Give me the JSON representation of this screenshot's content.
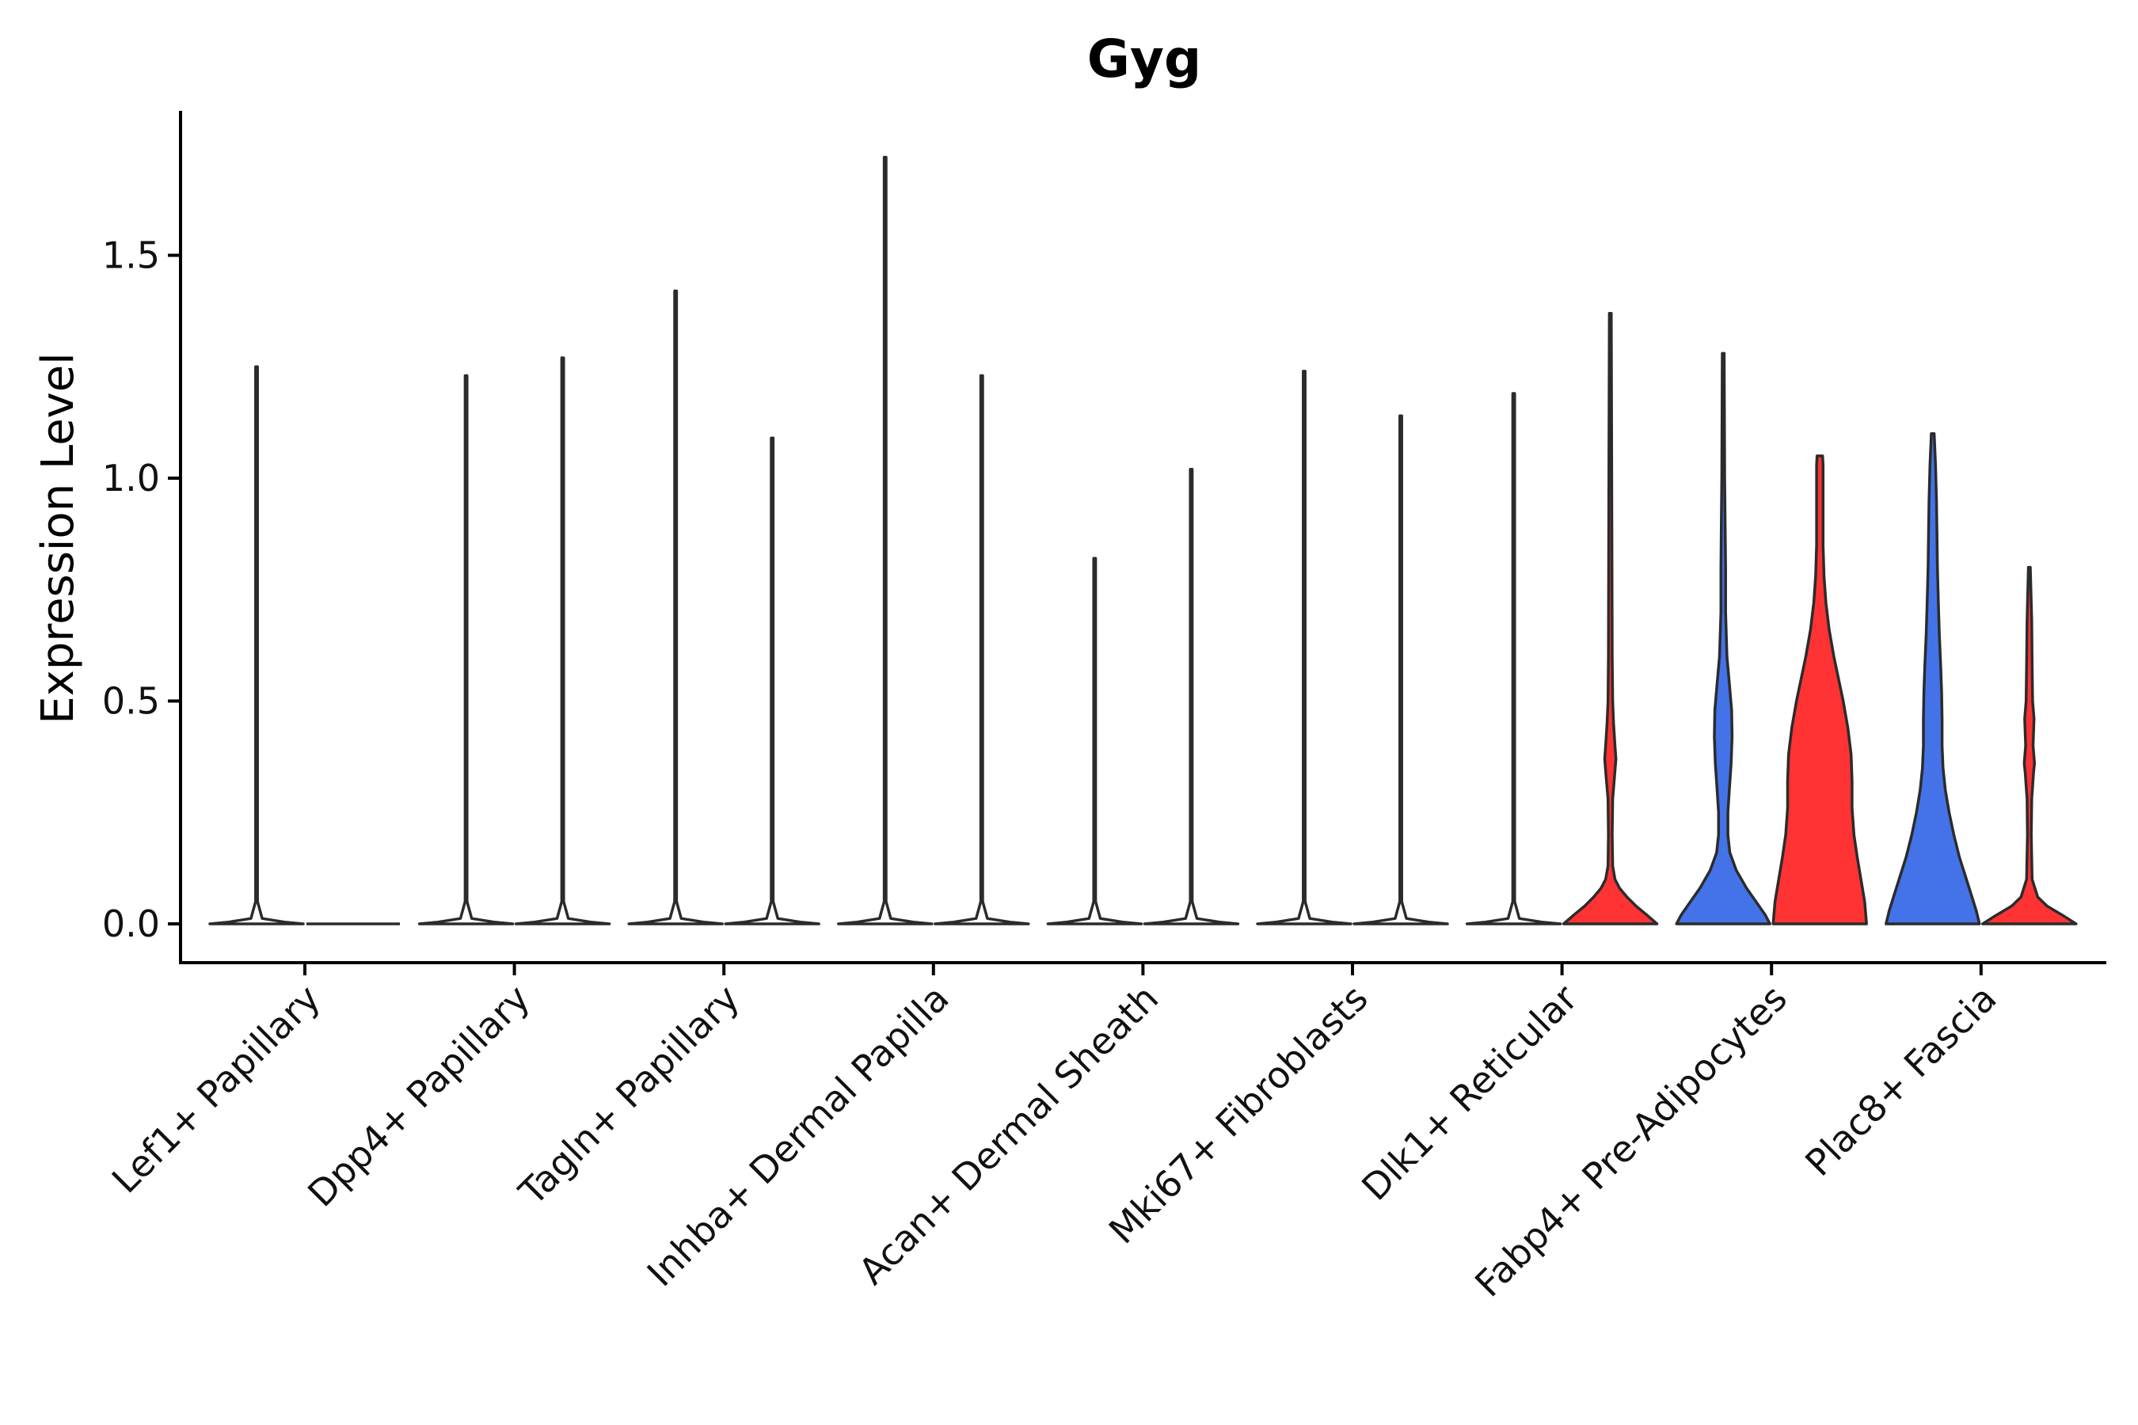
{
  "chart_data": {
    "type": "violin",
    "title": "Gyg",
    "xlabel": "",
    "ylabel": "Expression Level",
    "ylim": [
      -0.09,
      1.82
    ],
    "yticks": [
      0.0,
      0.5,
      1.0,
      1.5
    ],
    "ytick_labels": [
      "0.0",
      "0.5",
      "1.0",
      "1.5"
    ],
    "categories": [
      "Lef1+ Papillary",
      "Dpp4+ Papillary",
      "Tagln+ Papillary",
      "Inhba+ Dermal Papilla",
      "Acan+ Dermal Sheath",
      "Mki67+ Fibroblasts",
      "Dlk1+ Reticular",
      "Fabp4+ Pre-Adipocytes",
      "Plac8+ Fascia"
    ],
    "colors": {
      "group1": "#ffffff",
      "group2": "#ffffff",
      "blue": "#4472e8",
      "red": "#ff3333",
      "outline": "#2b2b2b"
    },
    "violins": [
      {
        "category": 0,
        "side": "left",
        "max": 1.25,
        "color": "#ffffff",
        "profile": [
          [
            0,
            1.0
          ],
          [
            0.004,
            0.6
          ],
          [
            0.012,
            0.12
          ],
          [
            0.05,
            0.02
          ],
          [
            1.25,
            0.02
          ]
        ]
      },
      {
        "category": 0,
        "side": "right",
        "max": 0.0,
        "color": "#ffffff",
        "profile": [
          [
            0,
            0
          ]
        ]
      },
      {
        "category": 1,
        "side": "left",
        "max": 1.23,
        "color": "#ffffff",
        "profile": [
          [
            0,
            1.0
          ],
          [
            0.004,
            0.6
          ],
          [
            0.012,
            0.12
          ],
          [
            0.05,
            0.02
          ],
          [
            1.23,
            0.02
          ]
        ]
      },
      {
        "category": 1,
        "side": "right",
        "max": 1.27,
        "color": "#ffffff",
        "profile": [
          [
            0,
            1.0
          ],
          [
            0.004,
            0.6
          ],
          [
            0.012,
            0.12
          ],
          [
            0.05,
            0.02
          ],
          [
            1.27,
            0.02
          ]
        ]
      },
      {
        "category": 2,
        "side": "left",
        "max": 1.42,
        "color": "#ffffff",
        "profile": [
          [
            0,
            1.0
          ],
          [
            0.004,
            0.6
          ],
          [
            0.012,
            0.12
          ],
          [
            0.05,
            0.02
          ],
          [
            1.42,
            0.02
          ]
        ]
      },
      {
        "category": 2,
        "side": "right",
        "max": 1.09,
        "color": "#ffffff",
        "profile": [
          [
            0,
            1.0
          ],
          [
            0.004,
            0.6
          ],
          [
            0.012,
            0.12
          ],
          [
            0.05,
            0.02
          ],
          [
            1.09,
            0.02
          ]
        ]
      },
      {
        "category": 3,
        "side": "left",
        "max": 1.72,
        "color": "#ffffff",
        "profile": [
          [
            0,
            1.0
          ],
          [
            0.004,
            0.6
          ],
          [
            0.012,
            0.12
          ],
          [
            0.05,
            0.02
          ],
          [
            1.72,
            0.02
          ]
        ]
      },
      {
        "category": 3,
        "side": "right",
        "max": 1.23,
        "color": "#ffffff",
        "profile": [
          [
            0,
            1.0
          ],
          [
            0.004,
            0.6
          ],
          [
            0.012,
            0.12
          ],
          [
            0.05,
            0.02
          ],
          [
            1.23,
            0.02
          ]
        ]
      },
      {
        "category": 4,
        "side": "left",
        "max": 0.82,
        "color": "#ffffff",
        "profile": [
          [
            0,
            1.0
          ],
          [
            0.004,
            0.6
          ],
          [
            0.012,
            0.12
          ],
          [
            0.05,
            0.02
          ],
          [
            0.82,
            0.02
          ]
        ]
      },
      {
        "category": 4,
        "side": "right",
        "max": 1.02,
        "color": "#ffffff",
        "profile": [
          [
            0,
            1.0
          ],
          [
            0.004,
            0.6
          ],
          [
            0.012,
            0.12
          ],
          [
            0.05,
            0.02
          ],
          [
            1.02,
            0.02
          ]
        ]
      },
      {
        "category": 5,
        "side": "left",
        "max": 1.24,
        "color": "#ffffff",
        "profile": [
          [
            0,
            1.0
          ],
          [
            0.004,
            0.6
          ],
          [
            0.012,
            0.12
          ],
          [
            0.05,
            0.02
          ],
          [
            1.24,
            0.02
          ]
        ]
      },
      {
        "category": 5,
        "side": "right",
        "max": 1.14,
        "color": "#ffffff",
        "profile": [
          [
            0,
            1.0
          ],
          [
            0.004,
            0.6
          ],
          [
            0.012,
            0.12
          ],
          [
            0.05,
            0.02
          ],
          [
            1.14,
            0.02
          ]
        ]
      },
      {
        "category": 6,
        "side": "left",
        "max": 1.19,
        "color": "#ffffff",
        "profile": [
          [
            0,
            1.0
          ],
          [
            0.004,
            0.6
          ],
          [
            0.012,
            0.12
          ],
          [
            0.05,
            0.02
          ],
          [
            1.19,
            0.02
          ]
        ]
      },
      {
        "category": 6,
        "side": "right",
        "max": 1.37,
        "color": "#ff3333",
        "profile": [
          [
            0,
            1.0
          ],
          [
            0.02,
            0.78
          ],
          [
            0.04,
            0.55
          ],
          [
            0.06,
            0.36
          ],
          [
            0.08,
            0.2
          ],
          [
            0.1,
            0.1
          ],
          [
            0.13,
            0.05
          ],
          [
            0.2,
            0.04
          ],
          [
            0.28,
            0.05
          ],
          [
            0.33,
            0.09
          ],
          [
            0.37,
            0.12
          ],
          [
            0.4,
            0.1
          ],
          [
            0.45,
            0.07
          ],
          [
            0.5,
            0.05
          ],
          [
            0.6,
            0.04
          ],
          [
            0.8,
            0.035
          ],
          [
            1.0,
            0.03
          ],
          [
            1.37,
            0.02
          ]
        ]
      },
      {
        "category": 7,
        "side": "left",
        "max": 1.28,
        "color": "#4472e8",
        "profile": [
          [
            0,
            1.0
          ],
          [
            0.02,
            0.9
          ],
          [
            0.05,
            0.7
          ],
          [
            0.08,
            0.5
          ],
          [
            0.12,
            0.28
          ],
          [
            0.16,
            0.14
          ],
          [
            0.2,
            0.1
          ],
          [
            0.25,
            0.1
          ],
          [
            0.3,
            0.13
          ],
          [
            0.36,
            0.17
          ],
          [
            0.42,
            0.19
          ],
          [
            0.48,
            0.18
          ],
          [
            0.54,
            0.13
          ],
          [
            0.6,
            0.08
          ],
          [
            0.7,
            0.05
          ],
          [
            0.8,
            0.05
          ],
          [
            0.9,
            0.04
          ],
          [
            1.0,
            0.03
          ],
          [
            1.28,
            0.02
          ]
        ]
      },
      {
        "category": 7,
        "side": "right",
        "max": 1.05,
        "color": "#ff3333",
        "profile": [
          [
            0,
            1.0
          ],
          [
            0.05,
            0.96
          ],
          [
            0.1,
            0.88
          ],
          [
            0.15,
            0.8
          ],
          [
            0.2,
            0.73
          ],
          [
            0.26,
            0.69
          ],
          [
            0.32,
            0.69
          ],
          [
            0.38,
            0.67
          ],
          [
            0.44,
            0.6
          ],
          [
            0.5,
            0.5
          ],
          [
            0.55,
            0.4
          ],
          [
            0.6,
            0.3
          ],
          [
            0.66,
            0.2
          ],
          [
            0.72,
            0.13
          ],
          [
            0.78,
            0.09
          ],
          [
            0.85,
            0.07
          ],
          [
            0.95,
            0.07
          ],
          [
            1.03,
            0.07
          ],
          [
            1.05,
            0.06
          ]
        ]
      },
      {
        "category": 8,
        "side": "left",
        "max": 1.1,
        "color": "#4472e8",
        "profile": [
          [
            0,
            1.0
          ],
          [
            0.03,
            0.93
          ],
          [
            0.06,
            0.84
          ],
          [
            0.1,
            0.72
          ],
          [
            0.15,
            0.57
          ],
          [
            0.2,
            0.45
          ],
          [
            0.25,
            0.35
          ],
          [
            0.3,
            0.27
          ],
          [
            0.35,
            0.22
          ],
          [
            0.4,
            0.2
          ],
          [
            0.46,
            0.2
          ],
          [
            0.52,
            0.19
          ],
          [
            0.58,
            0.17
          ],
          [
            0.65,
            0.14
          ],
          [
            0.72,
            0.12
          ],
          [
            0.8,
            0.1
          ],
          [
            0.88,
            0.09
          ],
          [
            0.95,
            0.08
          ],
          [
            1.03,
            0.06
          ],
          [
            1.1,
            0.03
          ]
        ]
      },
      {
        "category": 8,
        "side": "right",
        "max": 0.8,
        "color": "#ff3333",
        "profile": [
          [
            0,
            1.0
          ],
          [
            0.02,
            0.7
          ],
          [
            0.04,
            0.38
          ],
          [
            0.06,
            0.18
          ],
          [
            0.1,
            0.06
          ],
          [
            0.2,
            0.04
          ],
          [
            0.28,
            0.05
          ],
          [
            0.34,
            0.09
          ],
          [
            0.36,
            0.11
          ],
          [
            0.4,
            0.08
          ],
          [
            0.46,
            0.1
          ],
          [
            0.5,
            0.07
          ],
          [
            0.58,
            0.06
          ],
          [
            0.68,
            0.05
          ],
          [
            0.8,
            0.02
          ]
        ]
      }
    ]
  }
}
